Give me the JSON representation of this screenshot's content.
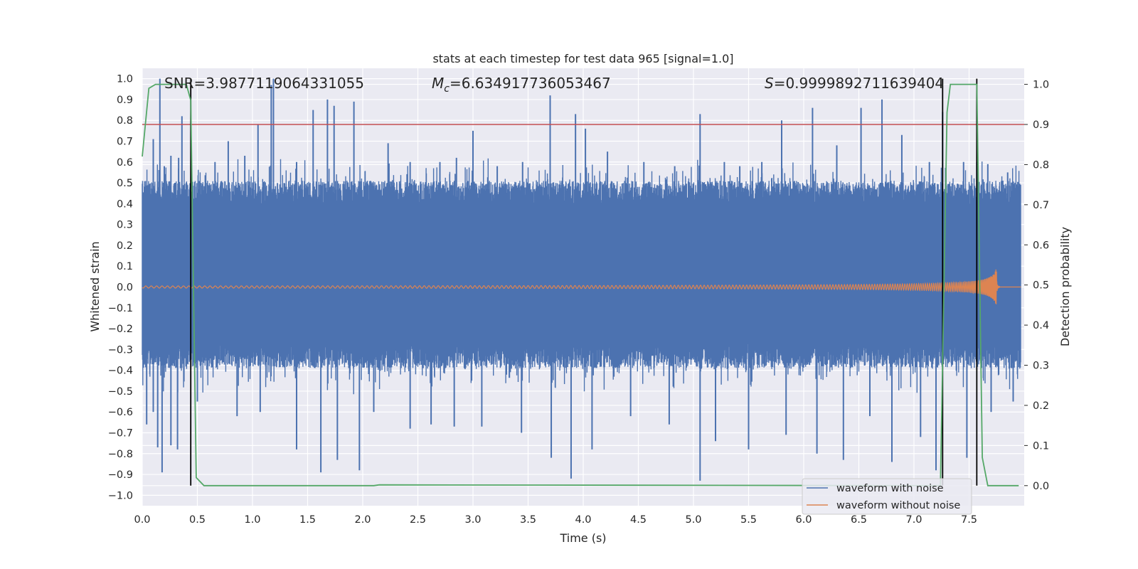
{
  "chart_data": {
    "type": "line",
    "title": "stats at each timestep for test data 965 [signal=1.0]",
    "xlabel": "Time (s)",
    "ylabel": "Whitened strain",
    "y2label": "Detection probability",
    "xlim": [
      0.0,
      8.0
    ],
    "ylim": [
      -1.05,
      1.05
    ],
    "y2lim": [
      -0.05,
      1.04
    ],
    "grid": true,
    "legend_position": "bottom-right",
    "xticks": [
      "0.0",
      "0.5",
      "1.0",
      "1.5",
      "2.0",
      "2.5",
      "3.0",
      "3.5",
      "4.0",
      "4.5",
      "5.0",
      "5.5",
      "6.0",
      "6.5",
      "7.0",
      "7.5"
    ],
    "yticks": [
      "1.0",
      "0.9",
      "0.8",
      "0.7",
      "0.6",
      "0.5",
      "0.4",
      "0.3",
      "0.2",
      "0.1",
      "0.0",
      "−0.1",
      "−0.2",
      "−0.3",
      "−0.4",
      "−0.5",
      "−0.6",
      "−0.7",
      "−0.8",
      "−0.9",
      "−1.0"
    ],
    "y2ticks": [
      "1.0",
      "0.9",
      "0.8",
      "0.7",
      "0.6",
      "0.5",
      "0.4",
      "0.3",
      "0.2",
      "0.1",
      "0.0"
    ],
    "annotations": {
      "snr": "SNR=3.9877119064331055",
      "mc_symbol": "M",
      "mc_sub": "c",
      "mc_value": "=6.634917736053467",
      "s_symbol": "S",
      "s_value": "=0.9999892711639404"
    },
    "threshold": {
      "axis": "right",
      "value": 0.9,
      "color": "#c44e52"
    },
    "vertical_markers": [
      0.44,
      7.26,
      7.57
    ],
    "series": [
      {
        "name": "waveform with noise",
        "axis": "left",
        "color": "#4c72b0",
        "envelope_band": [
          -0.33,
          0.45
        ],
        "peak_spikes": [
          [
            0.04,
            0.46
          ],
          [
            0.1,
            0.71
          ],
          [
            0.16,
            1.0
          ],
          [
            0.2,
            0.58
          ],
          [
            0.26,
            0.63
          ],
          [
            0.33,
            0.62
          ],
          [
            0.36,
            0.82
          ],
          [
            0.66,
            0.6
          ],
          [
            0.78,
            0.7
          ],
          [
            0.93,
            0.63
          ],
          [
            1.05,
            0.78
          ],
          [
            1.17,
            0.97
          ],
          [
            1.19,
            1.0
          ],
          [
            1.4,
            0.6
          ],
          [
            1.55,
            0.85
          ],
          [
            1.68,
            0.9
          ],
          [
            1.74,
            0.87
          ],
          [
            1.92,
            0.89
          ],
          [
            2.23,
            0.69
          ],
          [
            2.43,
            0.6
          ],
          [
            2.7,
            0.6
          ],
          [
            2.85,
            0.62
          ],
          [
            3.0,
            0.75
          ],
          [
            3.22,
            0.58
          ],
          [
            3.45,
            0.6
          ],
          [
            3.7,
            0.92
          ],
          [
            3.93,
            0.83
          ],
          [
            4.02,
            0.76
          ],
          [
            4.22,
            0.65
          ],
          [
            4.55,
            0.6
          ],
          [
            4.83,
            0.58
          ],
          [
            5.06,
            0.83
          ],
          [
            5.28,
            0.6
          ],
          [
            5.42,
            0.58
          ],
          [
            5.62,
            0.6
          ],
          [
            5.8,
            0.8
          ],
          [
            6.08,
            0.86
          ],
          [
            6.3,
            0.68
          ],
          [
            6.52,
            0.86
          ],
          [
            6.71,
            0.9
          ],
          [
            6.89,
            0.73
          ],
          [
            7.14,
            0.6
          ],
          [
            7.26,
            0.84
          ],
          [
            7.45,
            0.6
          ],
          [
            7.57,
            0.6
          ],
          [
            7.67,
            0.59
          ],
          [
            7.85,
            0.55
          ]
        ],
        "trough_spikes": [
          [
            0.04,
            -0.66
          ],
          [
            0.1,
            -0.6
          ],
          [
            0.14,
            -0.77
          ],
          [
            0.18,
            -0.89
          ],
          [
            0.26,
            -0.76
          ],
          [
            0.32,
            -0.78
          ],
          [
            0.5,
            -0.55
          ],
          [
            0.86,
            -0.62
          ],
          [
            1.07,
            -0.6
          ],
          [
            1.4,
            -0.78
          ],
          [
            1.62,
            -0.89
          ],
          [
            1.77,
            -0.83
          ],
          [
            1.97,
            -0.88
          ],
          [
            2.1,
            -0.6
          ],
          [
            2.43,
            -0.68
          ],
          [
            2.62,
            -0.66
          ],
          [
            2.83,
            -0.67
          ],
          [
            3.08,
            -0.67
          ],
          [
            3.44,
            -0.7
          ],
          [
            3.71,
            -0.82
          ],
          [
            3.89,
            -0.92
          ],
          [
            4.08,
            -0.78
          ],
          [
            4.43,
            -0.62
          ],
          [
            4.78,
            -0.66
          ],
          [
            5.06,
            -0.93
          ],
          [
            5.2,
            -0.74
          ],
          [
            5.5,
            -0.78
          ],
          [
            5.84,
            -0.71
          ],
          [
            6.12,
            -0.8
          ],
          [
            6.36,
            -0.83
          ],
          [
            6.6,
            -0.62
          ],
          [
            6.8,
            -0.84
          ],
          [
            7.06,
            -0.72
          ],
          [
            7.2,
            -0.88
          ],
          [
            7.48,
            -0.82
          ],
          [
            7.7,
            -0.6
          ],
          [
            7.9,
            -0.55
          ]
        ]
      },
      {
        "name": "waveform without noise",
        "axis": "left",
        "color": "#dd8452",
        "chirp_end_time": 7.75,
        "amplitude_start": 0.005,
        "peak_amplitude": 0.085
      },
      {
        "name": "detection probability",
        "axis": "right",
        "color": "#55a868",
        "points": [
          [
            0.0,
            0.82
          ],
          [
            0.06,
            0.99
          ],
          [
            0.12,
            1.0
          ],
          [
            0.4,
            1.0
          ],
          [
            0.44,
            0.96
          ],
          [
            0.49,
            0.02
          ],
          [
            0.56,
            0.0
          ],
          [
            2.1,
            0.0
          ],
          [
            2.15,
            0.002
          ],
          [
            7.24,
            0.0
          ],
          [
            7.3,
            0.93
          ],
          [
            7.33,
            1.0
          ],
          [
            7.57,
            1.0
          ],
          [
            7.62,
            0.07
          ],
          [
            7.67,
            0.0
          ],
          [
            7.95,
            0.0
          ]
        ]
      }
    ]
  }
}
